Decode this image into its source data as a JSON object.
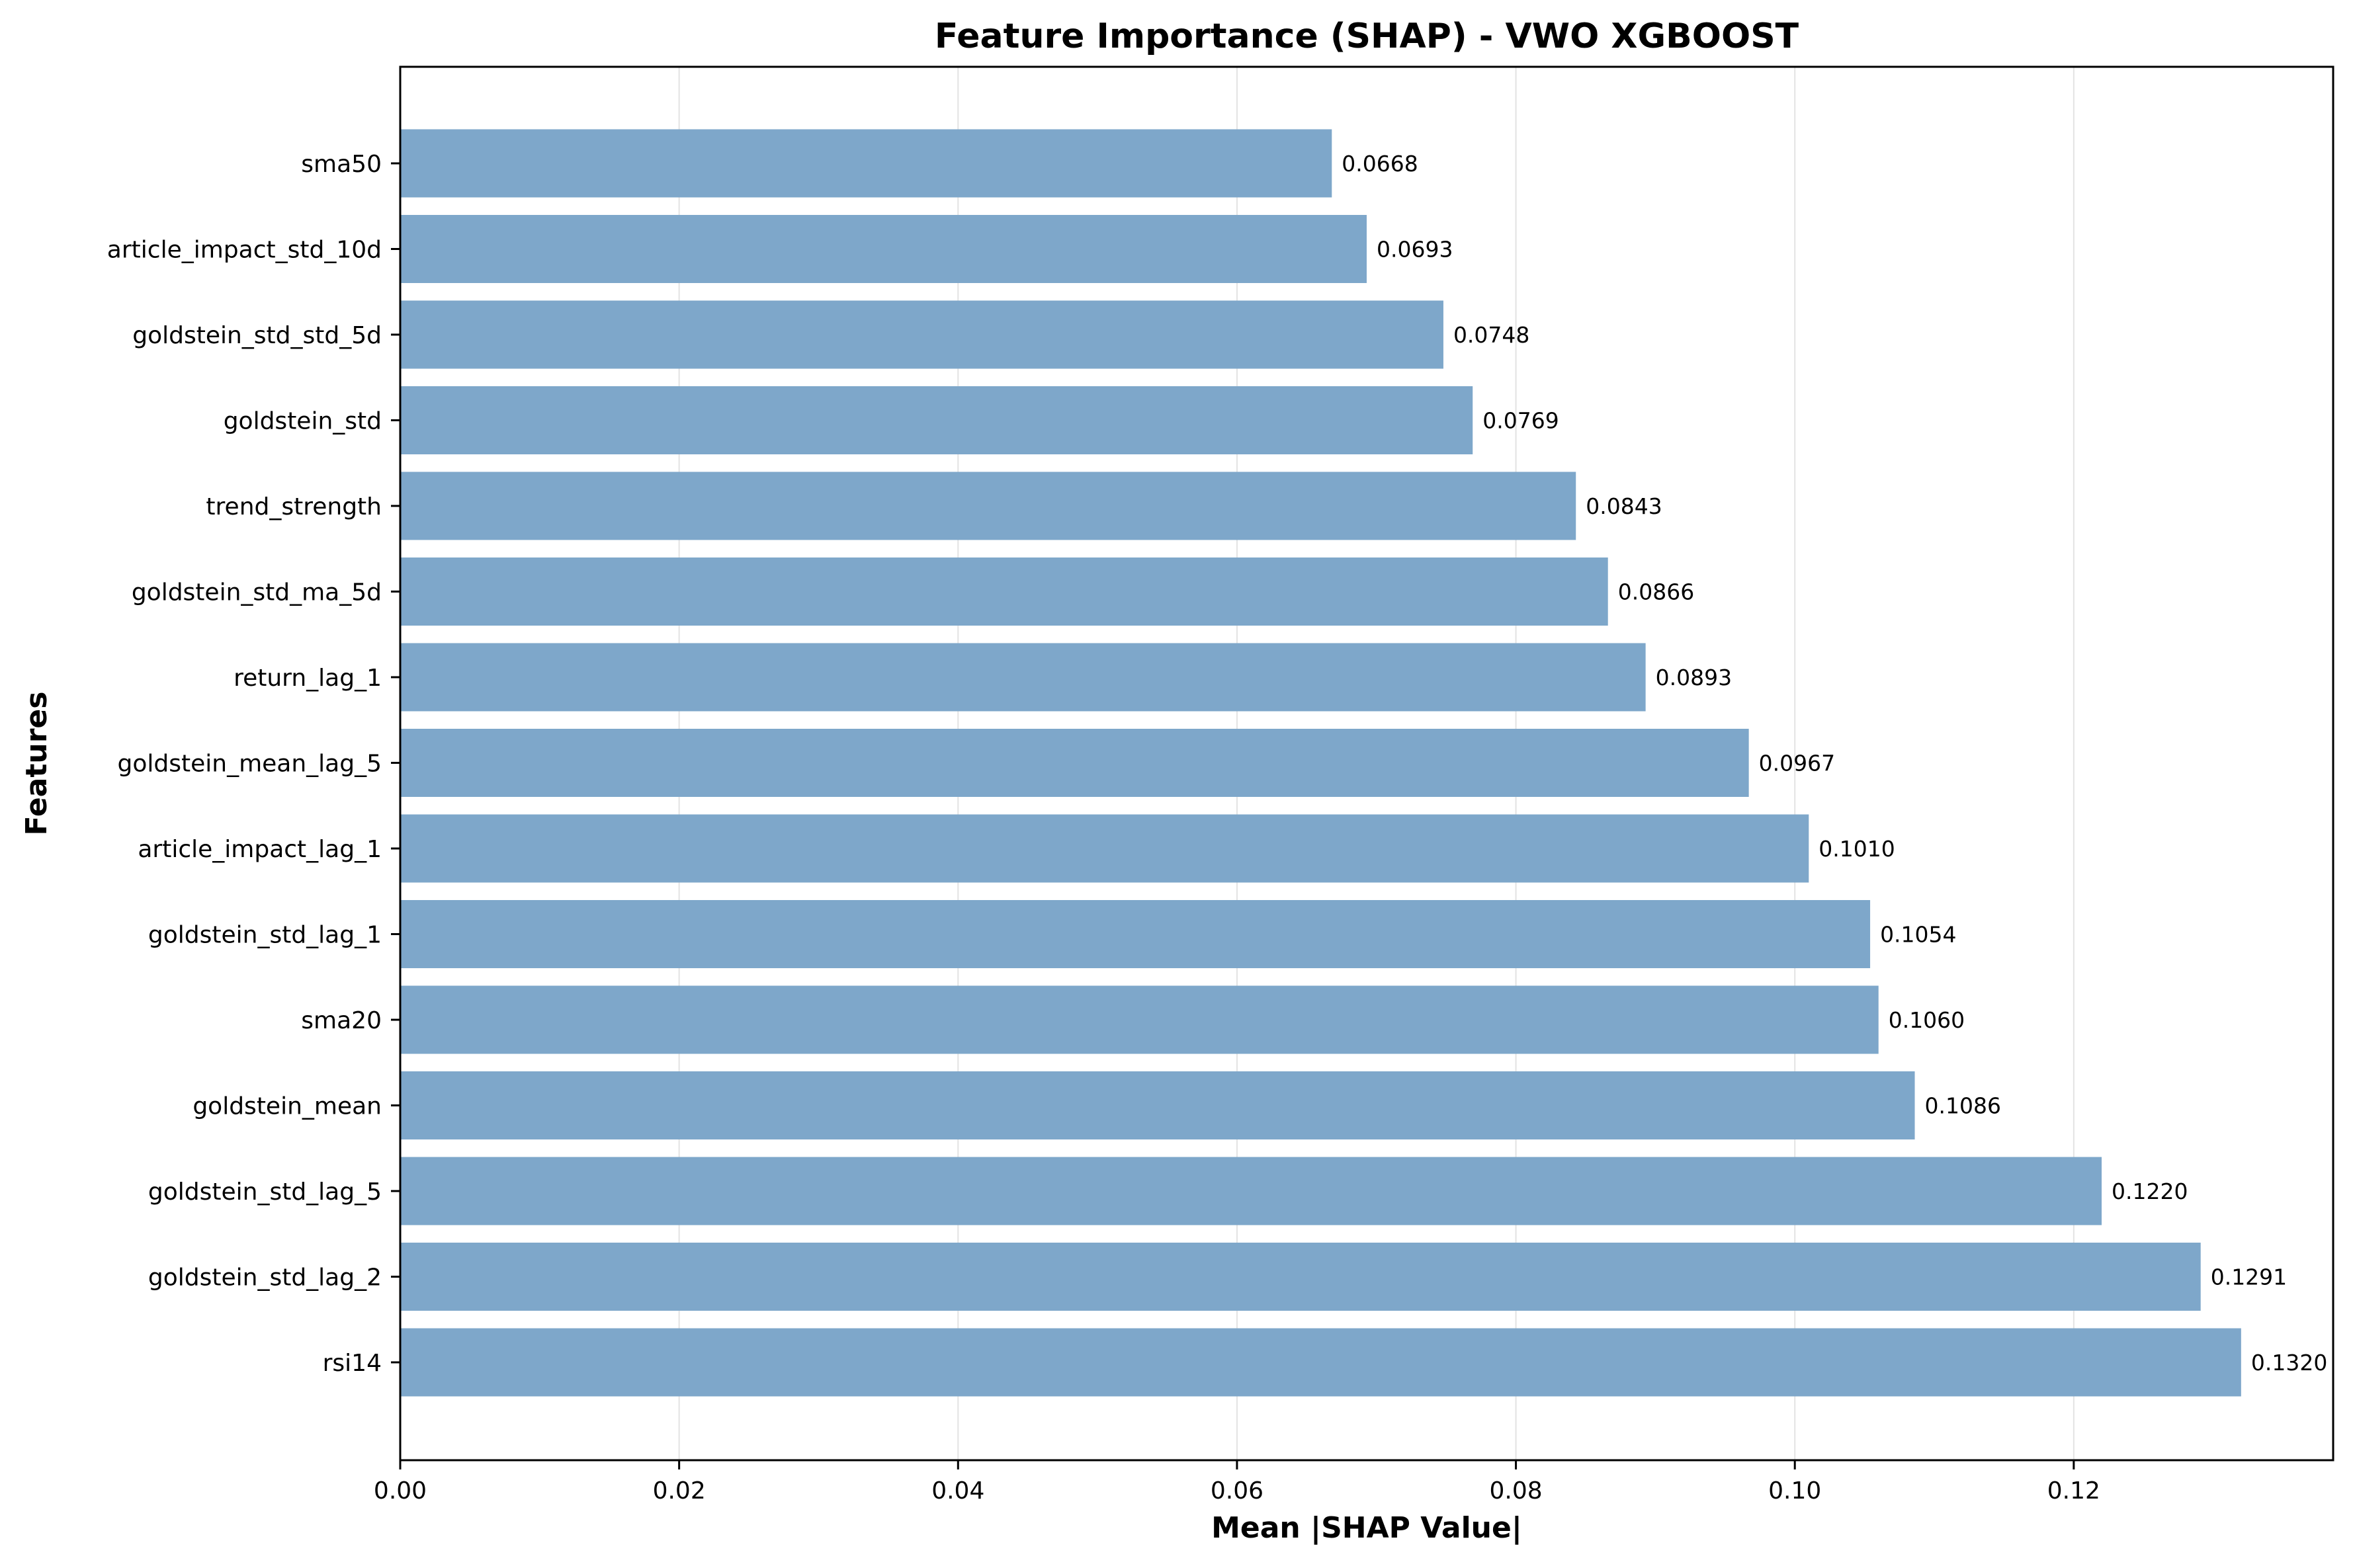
{
  "chart_data": {
    "type": "bar",
    "orientation": "horizontal",
    "title": "Feature Importance (SHAP) - VWO XGBOOST",
    "xlabel": "Mean |SHAP Value|",
    "ylabel": "Features",
    "xlim": [
      0,
      0.1386
    ],
    "xticks": [
      "0.00",
      "0.02",
      "0.04",
      "0.06",
      "0.08",
      "0.10",
      "0.12"
    ],
    "xtick_values": [
      0,
      0.02,
      0.04,
      0.06,
      0.08,
      0.1,
      0.12
    ],
    "grid": "vertical",
    "bar_color": "#7ea7ca",
    "categories": [
      "sma50",
      "article_impact_std_10d",
      "goldstein_std_std_5d",
      "goldstein_std",
      "trend_strength",
      "goldstein_std_ma_5d",
      "return_lag_1",
      "goldstein_mean_lag_5",
      "article_impact_lag_1",
      "goldstein_std_lag_1",
      "sma20",
      "goldstein_mean",
      "goldstein_std_lag_5",
      "goldstein_std_lag_2",
      "rsi14"
    ],
    "values": [
      0.0668,
      0.0693,
      0.0748,
      0.0769,
      0.0843,
      0.0866,
      0.0893,
      0.0967,
      0.101,
      0.1054,
      0.106,
      0.1086,
      0.122,
      0.1291,
      0.132
    ],
    "value_labels": [
      "0.0668",
      "0.0693",
      "0.0748",
      "0.0769",
      "0.0843",
      "0.0866",
      "0.0893",
      "0.0967",
      "0.1010",
      "0.1054",
      "0.1060",
      "0.1086",
      "0.1220",
      "0.1291",
      "0.1320"
    ]
  }
}
